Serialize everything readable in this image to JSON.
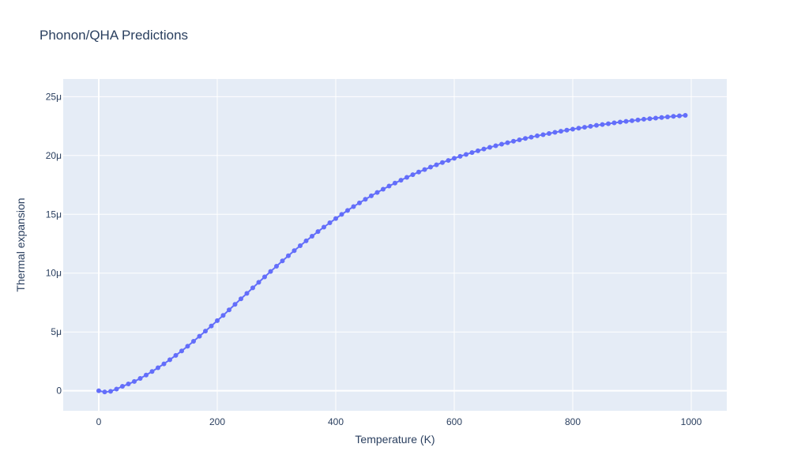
{
  "chart_data": {
    "type": "scatter",
    "mode": "lines+markers",
    "title": "Phonon/QHA Predictions",
    "xlabel": "Temperature (K)",
    "ylabel": "Thermal expansion",
    "xlim": [
      -60,
      1060
    ],
    "ylim": [
      -1.7e-06,
      2.65e-05
    ],
    "x_ticks": [
      0,
      200,
      400,
      600,
      800,
      1000
    ],
    "x_tick_labels": [
      "0",
      "200",
      "400",
      "600",
      "800",
      "1000"
    ],
    "y_ticks": [
      0,
      5e-06,
      1e-05,
      1.5e-05,
      2e-05,
      2.5e-05
    ],
    "y_tick_labels": [
      "0",
      "5μ",
      "10μ",
      "15μ",
      "20μ",
      "25μ"
    ],
    "grid": true,
    "colors": {
      "series": "#636efa",
      "plot_bg": "#e5ecf6",
      "grid": "#ffffff",
      "text": "#2a3f5f"
    },
    "series": [
      {
        "x": [
          0,
          10,
          20,
          30,
          40,
          50,
          60,
          70,
          80,
          90,
          100,
          110,
          120,
          130,
          140,
          150,
          160,
          170,
          180,
          190,
          200,
          210,
          220,
          230,
          240,
          250,
          260,
          270,
          280,
          290,
          300,
          310,
          320,
          330,
          340,
          350,
          360,
          370,
          380,
          390,
          400,
          410,
          420,
          430,
          440,
          450,
          460,
          470,
          480,
          490,
          500,
          510,
          520,
          530,
          540,
          550,
          560,
          570,
          580,
          590,
          600,
          610,
          620,
          630,
          640,
          650,
          660,
          670,
          680,
          690,
          700,
          710,
          720,
          730,
          740,
          750,
          760,
          770,
          780,
          790,
          800,
          810,
          820,
          830,
          840,
          850,
          860,
          870,
          880,
          890,
          900,
          910,
          920,
          930,
          940,
          950,
          960,
          970,
          980,
          990
        ],
        "y": [
          0,
          -1e-07,
          -5e-08,
          1.5e-07,
          3.8e-07,
          5.8e-07,
          7.9e-07,
          1.05e-06,
          1.34e-06,
          1.64e-06,
          1.96e-06,
          2.29e-06,
          2.64e-06,
          3.01e-06,
          3.39e-06,
          3.79e-06,
          4.21e-06,
          4.64e-06,
          5.07e-06,
          5.51e-06,
          5.96e-06,
          6.41e-06,
          6.88e-06,
          7.35e-06,
          7.82e-06,
          8.28e-06,
          8.75e-06,
          9.22e-06,
          9.68e-06,
          1.014e-05,
          1.059e-05,
          1.104e-05,
          1.148e-05,
          1.191e-05,
          1.233e-05,
          1.274e-05,
          1.314e-05,
          1.353e-05,
          1.391e-05,
          1.428e-05,
          1.464e-05,
          1.499e-05,
          1.533e-05,
          1.566e-05,
          1.597e-05,
          1.628e-05,
          1.657e-05,
          1.686e-05,
          1.713e-05,
          1.74e-05,
          1.765e-05,
          1.79e-05,
          1.814e-05,
          1.837e-05,
          1.859e-05,
          1.88e-05,
          1.901e-05,
          1.921e-05,
          1.94e-05,
          1.958e-05,
          1.976e-05,
          1.993e-05,
          2.009e-05,
          2.025e-05,
          2.04e-05,
          2.055e-05,
          2.069e-05,
          2.083e-05,
          2.096e-05,
          2.109e-05,
          2.121e-05,
          2.133e-05,
          2.145e-05,
          2.156e-05,
          2.167e-05,
          2.177e-05,
          2.187e-05,
          2.197e-05,
          2.206e-05,
          2.215e-05,
          2.224e-05,
          2.232e-05,
          2.24e-05,
          2.248e-05,
          2.256e-05,
          2.263e-05,
          2.27e-05,
          2.277e-05,
          2.284e-05,
          2.29e-05,
          2.296e-05,
          2.302e-05,
          2.308e-05,
          2.313e-05,
          2.318e-05,
          2.323e-05,
          2.328e-05,
          2.333e-05,
          2.337e-05,
          2.341e-05
        ]
      }
    ]
  }
}
